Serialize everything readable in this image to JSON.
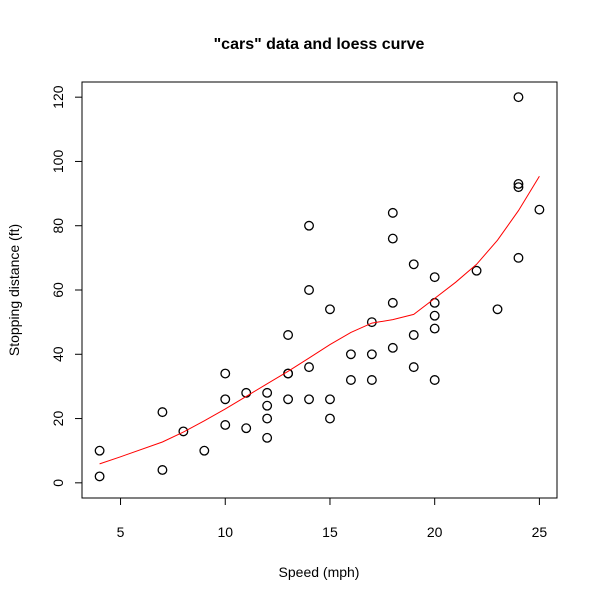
{
  "chart_data": {
    "type": "scatter",
    "title": "\"cars\" data and loess curve",
    "xlabel": "Speed (mph)",
    "ylabel": "Stopping distance (ft)",
    "xlim": [
      3.16,
      25.84
    ],
    "ylim": [
      -4.72,
      124.72
    ],
    "xticks": [
      5,
      10,
      15,
      20,
      25
    ],
    "yticks": [
      0,
      20,
      40,
      60,
      80,
      100,
      120
    ],
    "grid": false,
    "series": [
      {
        "type": "scatter",
        "marker": "open-circle",
        "color": "#000000",
        "points": [
          [
            4,
            2
          ],
          [
            4,
            10
          ],
          [
            7,
            4
          ],
          [
            7,
            22
          ],
          [
            8,
            16
          ],
          [
            9,
            10
          ],
          [
            10,
            18
          ],
          [
            10,
            26
          ],
          [
            10,
            34
          ],
          [
            11,
            17
          ],
          [
            11,
            28
          ],
          [
            12,
            14
          ],
          [
            12,
            20
          ],
          [
            12,
            24
          ],
          [
            12,
            28
          ],
          [
            13,
            26
          ],
          [
            13,
            34
          ],
          [
            13,
            34
          ],
          [
            13,
            46
          ],
          [
            14,
            26
          ],
          [
            14,
            36
          ],
          [
            14,
            60
          ],
          [
            14,
            80
          ],
          [
            15,
            20
          ],
          [
            15,
            26
          ],
          [
            15,
            54
          ],
          [
            16,
            32
          ],
          [
            16,
            40
          ],
          [
            17,
            32
          ],
          [
            17,
            40
          ],
          [
            17,
            50
          ],
          [
            18,
            42
          ],
          [
            18,
            56
          ],
          [
            18,
            76
          ],
          [
            18,
            84
          ],
          [
            19,
            36
          ],
          [
            19,
            46
          ],
          [
            19,
            68
          ],
          [
            20,
            32
          ],
          [
            20,
            48
          ],
          [
            20,
            52
          ],
          [
            20,
            56
          ],
          [
            20,
            64
          ],
          [
            22,
            66
          ],
          [
            23,
            54
          ],
          [
            24,
            70
          ],
          [
            24,
            92
          ],
          [
            24,
            93
          ],
          [
            24,
            120
          ],
          [
            25,
            85
          ]
        ]
      },
      {
        "type": "line",
        "color": "#ff0000",
        "points": [
          [
            4,
            5.9
          ],
          [
            5,
            8.1
          ],
          [
            7,
            12.7
          ],
          [
            8,
            15.8
          ],
          [
            9,
            19.3
          ],
          [
            10,
            23.0
          ],
          [
            11,
            26.9
          ],
          [
            12,
            30.8
          ],
          [
            13,
            34.7
          ],
          [
            14,
            38.8
          ],
          [
            15,
            43.0
          ],
          [
            16,
            46.8
          ],
          [
            17,
            49.7
          ],
          [
            18,
            50.8
          ],
          [
            19,
            52.4
          ],
          [
            20,
            57.4
          ],
          [
            21,
            62.4
          ],
          [
            22,
            68.0
          ],
          [
            23,
            75.5
          ],
          [
            24,
            84.7
          ],
          [
            25,
            95.4
          ]
        ]
      }
    ]
  }
}
